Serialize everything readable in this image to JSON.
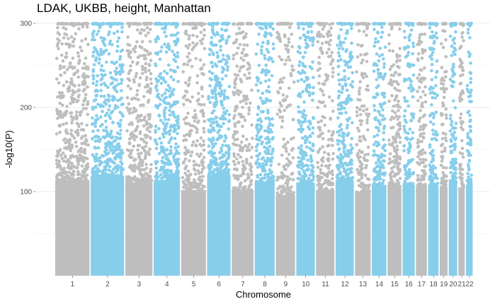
{
  "chart_data": {
    "type": "scatter",
    "title": "LDAK, UKBB, height, Manhattan",
    "xlabel": "Chromosome",
    "ylabel": "-log10(P)",
    "ylim": [
      0,
      300
    ],
    "yticks": [
      100,
      200,
      300
    ],
    "grid": true,
    "legend": "none",
    "colors": [
      "#bebebe",
      "#87ceeb"
    ],
    "chromosomes": [
      {
        "label": "1",
        "length": 249,
        "top": 300,
        "density": 0.9
      },
      {
        "label": "2",
        "length": 243,
        "top": 300,
        "density": 0.95
      },
      {
        "label": "3",
        "length": 198,
        "top": 300,
        "density": 0.85
      },
      {
        "label": "4",
        "length": 191,
        "top": 300,
        "density": 0.9
      },
      {
        "label": "5",
        "length": 181,
        "top": 300,
        "density": 0.7
      },
      {
        "label": "6",
        "length": 171,
        "top": 300,
        "density": 1.0
      },
      {
        "label": "7",
        "length": 159,
        "top": 300,
        "density": 0.7
      },
      {
        "label": "8",
        "length": 146,
        "top": 300,
        "density": 0.85
      },
      {
        "label": "9",
        "length": 141,
        "top": 300,
        "density": 0.6
      },
      {
        "label": "10",
        "length": 136,
        "top": 300,
        "density": 0.85
      },
      {
        "label": "11",
        "length": 135,
        "top": 300,
        "density": 0.7
      },
      {
        "label": "12",
        "length": 133,
        "top": 300,
        "density": 0.9
      },
      {
        "label": "13",
        "length": 115,
        "top": 300,
        "density": 0.65
      },
      {
        "label": "14",
        "length": 107,
        "top": 300,
        "density": 0.8
      },
      {
        "label": "15",
        "length": 102,
        "top": 300,
        "density": 0.8
      },
      {
        "label": "16",
        "length": 90,
        "top": 300,
        "density": 0.8
      },
      {
        "label": "17",
        "length": 81,
        "top": 300,
        "density": 0.8
      },
      {
        "label": "18",
        "length": 78,
        "top": 300,
        "density": 0.8
      },
      {
        "label": "19",
        "length": 59,
        "top": 300,
        "density": 0.75
      },
      {
        "label": "20",
        "length": 63,
        "top": 300,
        "density": 0.85
      },
      {
        "label": "21",
        "length": 48,
        "top": 300,
        "density": 0.75
      },
      {
        "label": "22",
        "length": 51,
        "top": 300,
        "density": 0.8
      }
    ]
  }
}
